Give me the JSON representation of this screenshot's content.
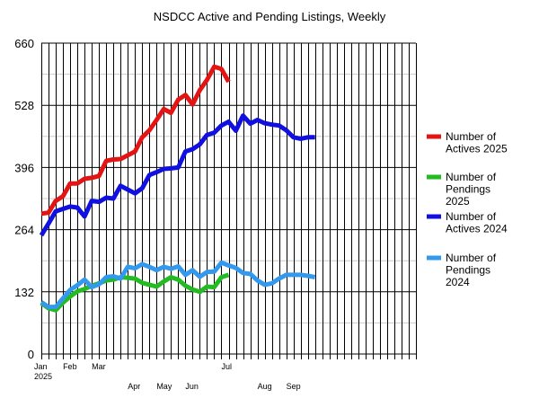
{
  "chart_data": {
    "type": "line",
    "title": "NSDCC Active and Pending Listings, Weekly",
    "xlabel": "",
    "ylabel": "",
    "ylim": [
      0,
      660
    ],
    "yticks": [
      0,
      132,
      264,
      396,
      528,
      660
    ],
    "y_tick_labels": [
      "0",
      "132",
      "264",
      "396",
      "528",
      "660"
    ],
    "week_count": 52,
    "x_tick_labels": [
      {
        "label": "Jan",
        "week": 0
      },
      {
        "label": "2025",
        "week": 0,
        "line": 2
      },
      {
        "label": "Feb",
        "week": 4
      },
      {
        "label": "Mar",
        "week": 8
      },
      {
        "label": "Apr",
        "week": 13,
        "line": 3
      },
      {
        "label": "May",
        "week": 17,
        "line": 3
      },
      {
        "label": "Jun",
        "week": 21,
        "line": 3
      },
      {
        "label": "Jul",
        "week": 26
      },
      {
        "label": "Aug",
        "week": 31,
        "line": 3
      },
      {
        "label": "Sep",
        "week": 35,
        "line": 3
      }
    ],
    "grid": true,
    "legend_position": "right",
    "series": [
      {
        "name": "Number of Actives 2025",
        "legend_lines": [
          "Number of",
          "Actives 2025"
        ],
        "color": "#e31414",
        "values": [
          298,
          300,
          325,
          335,
          362,
          362,
          372,
          374,
          378,
          410,
          413,
          414,
          422,
          430,
          460,
          475,
          497,
          520,
          512,
          540,
          550,
          530,
          560,
          582,
          610,
          605,
          578
        ]
      },
      {
        "name": "Number of Pendings 2025",
        "legend_lines": [
          "Number of",
          "Pendings",
          "2025"
        ],
        "color": "#22bb22",
        "values": [
          108,
          97,
          93,
          109,
          122,
          133,
          138,
          145,
          150,
          156,
          158,
          163,
          162,
          160,
          151,
          147,
          143,
          154,
          163,
          158,
          145,
          137,
          132,
          143,
          142,
          163,
          168
        ]
      },
      {
        "name": "Number of Actives 2024",
        "legend_lines": [
          "Number of",
          "Actives 2024"
        ],
        "color": "#1010e0",
        "values": [
          252,
          277,
          303,
          308,
          313,
          311,
          292,
          325,
          323,
          332,
          330,
          357,
          349,
          341,
          352,
          380,
          386,
          393,
          394,
          396,
          430,
          435,
          445,
          465,
          470,
          485,
          493,
          474,
          506,
          489,
          497,
          490,
          487,
          485,
          475,
          460,
          457,
          460,
          460
        ]
      },
      {
        "name": "Number of Pendings 2024",
        "legend_lines": [
          "Number of",
          "Pendings",
          "2024"
        ],
        "color": "#3399ee",
        "values": [
          110,
          100,
          100,
          118,
          136,
          146,
          158,
          142,
          148,
          163,
          165,
          160,
          185,
          182,
          191,
          185,
          178,
          185,
          181,
          186,
          168,
          178,
          164,
          174,
          175,
          194,
          188,
          183,
          172,
          170,
          156,
          147,
          150,
          160,
          168,
          168,
          168,
          166,
          163
        ]
      }
    ]
  }
}
